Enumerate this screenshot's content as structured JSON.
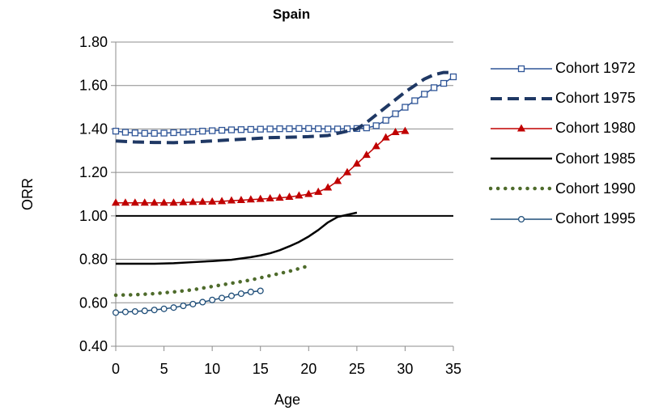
{
  "chart_data": {
    "type": "line",
    "title": "Spain",
    "xlabel": "Age",
    "ylabel": "ORR",
    "xlim": [
      0,
      35
    ],
    "ylim": [
      0.4,
      1.8
    ],
    "xticks": [
      "0",
      "5",
      "10",
      "15",
      "20",
      "25",
      "30",
      "35"
    ],
    "yticks": [
      "0.40",
      "0.60",
      "0.80",
      "1.00",
      "1.20",
      "1.40",
      "1.60",
      "1.80"
    ],
    "grid": "horizontal",
    "legend_position": "right",
    "reference_line": {
      "y": 1.0,
      "color": "#000000"
    },
    "series": [
      {
        "name": "Cohort 1972",
        "color": "#2F5597",
        "style": "solid-square-markers",
        "x": [
          0,
          1,
          2,
          3,
          4,
          5,
          6,
          7,
          8,
          9,
          10,
          11,
          12,
          13,
          14,
          15,
          16,
          17,
          18,
          19,
          20,
          21,
          22,
          23,
          24,
          25,
          26,
          27,
          28,
          29,
          30,
          31,
          32,
          33,
          34,
          35
        ],
        "y": [
          1.39,
          1.385,
          1.382,
          1.38,
          1.38,
          1.381,
          1.383,
          1.385,
          1.387,
          1.39,
          1.392,
          1.394,
          1.396,
          1.397,
          1.398,
          1.399,
          1.4,
          1.401,
          1.401,
          1.402,
          1.402,
          1.401,
          1.4,
          1.4,
          1.401,
          1.402,
          1.405,
          1.415,
          1.44,
          1.47,
          1.5,
          1.53,
          1.56,
          1.59,
          1.61,
          1.64
        ]
      },
      {
        "name": "Cohort 1975",
        "color": "#1F3864",
        "style": "dashed",
        "x": [
          0,
          2,
          4,
          6,
          8,
          10,
          12,
          14,
          16,
          18,
          20,
          22,
          24,
          25,
          26,
          28,
          30,
          32,
          33,
          34,
          35
        ],
        "y": [
          1.345,
          1.34,
          1.338,
          1.337,
          1.34,
          1.345,
          1.35,
          1.355,
          1.36,
          1.362,
          1.365,
          1.37,
          1.39,
          1.4,
          1.43,
          1.5,
          1.57,
          1.63,
          1.65,
          1.66,
          1.66
        ]
      },
      {
        "name": "Cohort 1980",
        "color": "#C00000",
        "style": "solid-triangle-markers",
        "x": [
          0,
          1,
          2,
          3,
          4,
          5,
          6,
          7,
          8,
          9,
          10,
          11,
          12,
          13,
          14,
          15,
          16,
          17,
          18,
          19,
          20,
          21,
          22,
          23,
          24,
          25,
          26,
          27,
          28,
          29,
          30
        ],
        "y": [
          1.06,
          1.06,
          1.06,
          1.06,
          1.06,
          1.06,
          1.06,
          1.062,
          1.063,
          1.064,
          1.065,
          1.067,
          1.07,
          1.072,
          1.075,
          1.077,
          1.08,
          1.083,
          1.087,
          1.093,
          1.1,
          1.11,
          1.13,
          1.16,
          1.2,
          1.24,
          1.28,
          1.32,
          1.36,
          1.385,
          1.39
        ]
      },
      {
        "name": "Cohort 1985",
        "color": "#000000",
        "style": "solid",
        "x": [
          0,
          2,
          4,
          6,
          8,
          10,
          12,
          14,
          15,
          16,
          17,
          18,
          19,
          20,
          21,
          22,
          23,
          24,
          25
        ],
        "y": [
          0.78,
          0.78,
          0.78,
          0.782,
          0.787,
          0.792,
          0.798,
          0.81,
          0.818,
          0.828,
          0.842,
          0.86,
          0.88,
          0.905,
          0.935,
          0.97,
          0.995,
          1.005,
          1.015
        ]
      },
      {
        "name": "Cohort 1990",
        "color": "#4E6B2B",
        "style": "dotted",
        "x": [
          0,
          2,
          4,
          6,
          8,
          10,
          12,
          14,
          16,
          18,
          20
        ],
        "y": [
          0.635,
          0.637,
          0.642,
          0.65,
          0.66,
          0.675,
          0.69,
          0.705,
          0.725,
          0.745,
          0.77
        ]
      },
      {
        "name": "Cohort 1995",
        "color": "#1F4E79",
        "style": "solid-circle-markers",
        "x": [
          0,
          1,
          2,
          3,
          4,
          5,
          6,
          7,
          8,
          9,
          10,
          11,
          12,
          13,
          14,
          15
        ],
        "y": [
          0.555,
          0.558,
          0.56,
          0.563,
          0.567,
          0.572,
          0.578,
          0.586,
          0.594,
          0.603,
          0.613,
          0.622,
          0.632,
          0.642,
          0.65,
          0.655
        ]
      }
    ]
  }
}
